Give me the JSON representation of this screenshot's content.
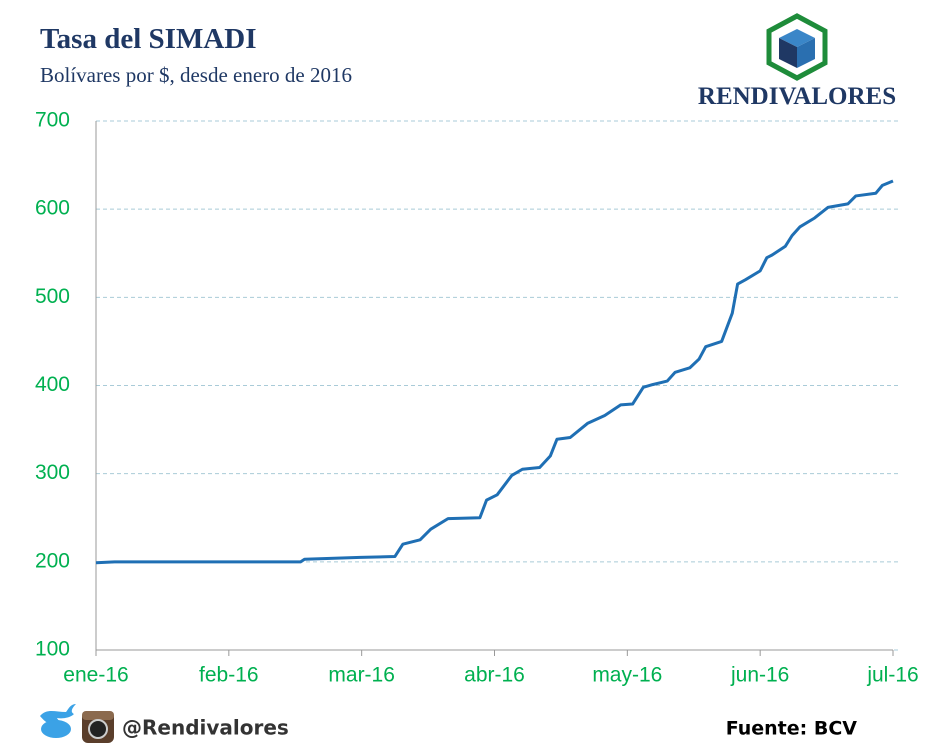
{
  "chart_data": {
    "type": "line",
    "title": "Tasa del SIMADI",
    "subtitle": "Bolívares por $, desde enero de 2016",
    "brand": "RENDIVALORES",
    "handle": "@Rendivalores",
    "source": "Fuente: BCV",
    "xlim": [
      0,
      6
    ],
    "xticks": [
      {
        "value": 0,
        "label": "ene-16"
      },
      {
        "value": 1,
        "label": "feb-16"
      },
      {
        "value": 2,
        "label": "mar-16"
      },
      {
        "value": 3,
        "label": "abr-16"
      },
      {
        "value": 4,
        "label": "may-16"
      },
      {
        "value": 5,
        "label": "jun-16"
      },
      {
        "value": 6,
        "label": "jul-16"
      }
    ],
    "ylim": [
      100,
      700
    ],
    "yticks": [
      100,
      200,
      300,
      400,
      500,
      600,
      700
    ],
    "grid": true,
    "x": [
      0,
      0.14,
      1.54,
      1.57,
      1.99,
      2.25,
      2.31,
      2.44,
      2.52,
      2.65,
      2.89,
      2.94,
      3.02,
      3.13,
      3.21,
      3.34,
      3.42,
      3.47,
      3.57,
      3.7,
      3.83,
      3.95,
      4.04,
      4.12,
      4.19,
      4.3,
      4.36,
      4.47,
      4.54,
      4.59,
      4.71,
      4.79,
      4.83,
      4.89,
      5.0,
      5.05,
      5.09,
      5.19,
      5.24,
      5.3,
      5.41,
      5.51,
      5.66,
      5.72,
      5.87,
      5.92,
      6.0
    ],
    "series": [
      {
        "name": "SIMADI",
        "color": "#1f6fb4",
        "values": [
          199,
          200,
          200,
          203,
          205,
          206,
          220,
          225,
          237,
          249,
          250,
          270,
          276,
          298,
          305,
          307,
          320,
          339,
          341,
          357,
          366,
          378,
          379,
          398,
          401,
          405,
          415,
          420,
          430,
          444,
          450,
          482,
          515,
          520,
          530,
          545,
          548,
          558,
          570,
          580,
          590,
          602,
          606,
          615,
          618,
          627,
          632
        ]
      }
    ]
  }
}
